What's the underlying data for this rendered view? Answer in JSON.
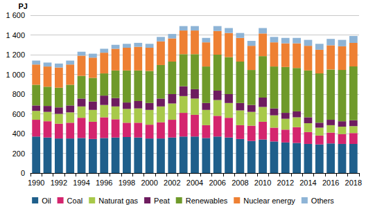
{
  "chart_data": {
    "type": "bar",
    "stacked": true,
    "grid": true,
    "legend": "bottom",
    "y_label": "PJ",
    "categories": [
      "1990",
      null,
      "1992",
      null,
      "1994",
      null,
      "1996",
      null,
      "1998",
      null,
      "2000",
      null,
      "2002",
      null,
      "2004",
      null,
      "2006",
      null,
      "2008",
      null,
      "2010",
      null,
      "2012",
      null,
      "2014",
      null,
      "2016",
      null,
      "2018"
    ],
    "ylim": [
      0,
      1600
    ],
    "yticks": [
      0,
      200,
      400,
      600,
      800,
      {
        "value": 1000,
        "label": "1 000"
      },
      {
        "value": 1200,
        "label": "1 200"
      },
      {
        "value": 1400,
        "label": "1 400"
      },
      {
        "value": 1600,
        "label": "1 600"
      }
    ],
    "series": [
      {
        "name": "Oil",
        "color": "#1f5f8b",
        "values": [
          370,
          360,
          350,
          350,
          355,
          345,
          355,
          360,
          365,
          360,
          350,
          350,
          360,
          370,
          370,
          355,
          370,
          360,
          345,
          325,
          340,
          320,
          310,
          305,
          295,
          290,
          300,
          295,
          295
        ]
      },
      {
        "name": "Coal",
        "color": "#d4256e",
        "values": [
          170,
          165,
          150,
          160,
          205,
          175,
          210,
          185,
          145,
          150,
          140,
          165,
          180,
          240,
          220,
          130,
          210,
          200,
          140,
          155,
          180,
          140,
          130,
          160,
          120,
          90,
          110,
          100,
          110
        ]
      },
      {
        "name": "Naturat gas",
        "color": "#a8c94a",
        "values": [
          90,
          95,
          100,
          105,
          115,
          120,
          125,
          130,
          140,
          145,
          150,
          160,
          165,
          170,
          165,
          155,
          160,
          150,
          150,
          140,
          150,
          125,
          110,
          100,
          90,
          80,
          75,
          75,
          70
        ]
      },
      {
        "name": "Peat",
        "color": "#6e1c5f",
        "values": [
          55,
          60,
          65,
          70,
          80,
          85,
          95,
          85,
          65,
          75,
          70,
          80,
          95,
          100,
          95,
          70,
          95,
          90,
          75,
          70,
          95,
          70,
          60,
          60,
          60,
          50,
          55,
          55,
          60
        ]
      },
      {
        "name": "Renewables",
        "color": "#6f9a2a",
        "values": [
          210,
          195,
          200,
          210,
          230,
          240,
          225,
          280,
          325,
          310,
          325,
          340,
          330,
          325,
          355,
          370,
          365,
          375,
          420,
          355,
          420,
          425,
          465,
          440,
          475,
          500,
          510,
          520,
          545
        ]
      },
      {
        "name": "Nuclear energy",
        "color": "#ee8033",
        "values": [
          205,
          205,
          205,
          205,
          205,
          205,
          210,
          220,
          230,
          240,
          235,
          240,
          235,
          240,
          240,
          245,
          240,
          245,
          240,
          245,
          230,
          245,
          240,
          250,
          250,
          240,
          245,
          240,
          240
        ]
      },
      {
        "name": "Others",
        "color": "#8eb4d6",
        "values": [
          40,
          40,
          40,
          40,
          40,
          40,
          40,
          40,
          40,
          40,
          40,
          45,
          45,
          45,
          45,
          45,
          50,
          50,
          50,
          50,
          55,
          55,
          55,
          55,
          60,
          60,
          65,
          65,
          70
        ]
      }
    ]
  }
}
